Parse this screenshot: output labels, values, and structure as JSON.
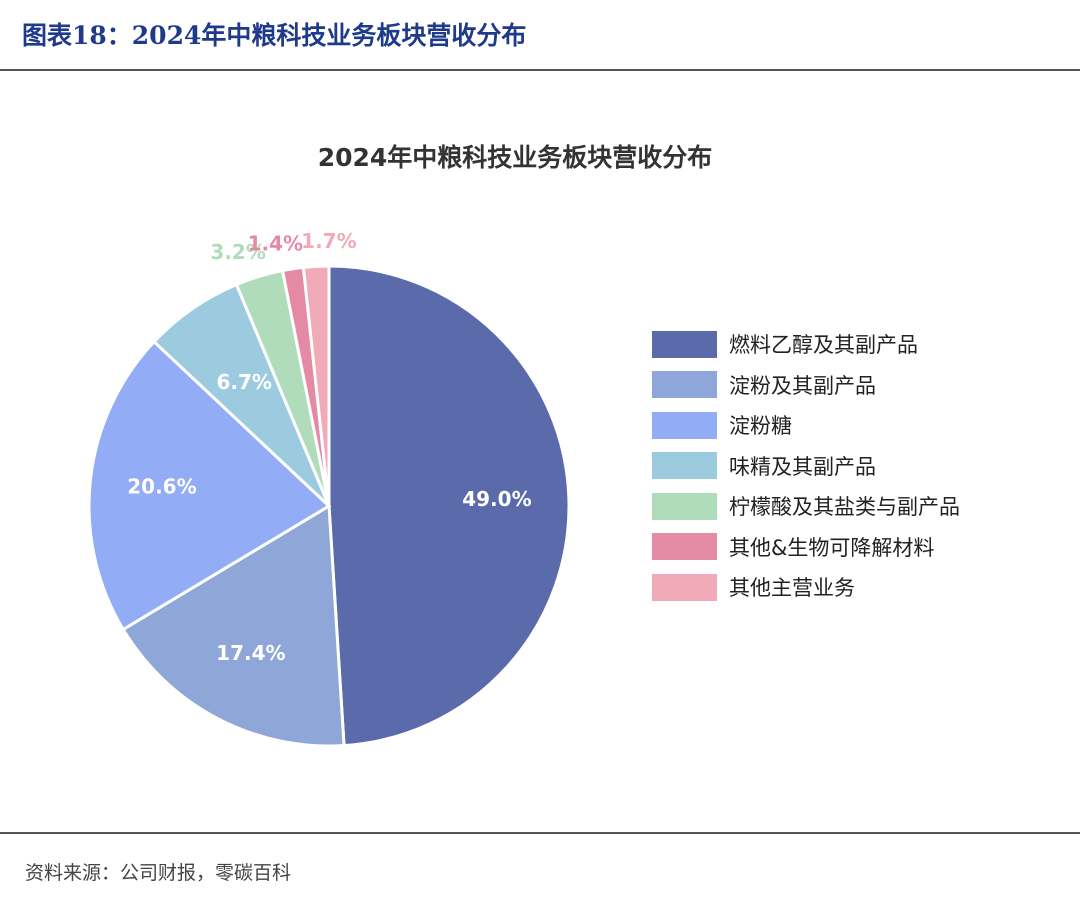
{
  "figure": {
    "title": "图表18：2024年中粮科技业务板块营收分布",
    "source": "资料来源：公司财报，零碳百科"
  },
  "chart_data": {
    "type": "pie",
    "title": "2024年中粮科技业务板块营收分布",
    "legend_position": "right",
    "slices": [
      {
        "name": "燃料乙醇及其副产品",
        "value": 49.0,
        "label": "49.0%",
        "color": "#5a6aab"
      },
      {
        "name": "淀粉及其副产品",
        "value": 17.4,
        "label": "17.4%",
        "color": "#8ea6d8"
      },
      {
        "name": "淀粉糖",
        "value": 20.6,
        "label": "20.6%",
        "color": "#93acf6"
      },
      {
        "name": "味精及其副产品",
        "value": 6.7,
        "label": "6.7%",
        "color": "#9ccbe0"
      },
      {
        "name": "柠檬酸及其盐类与副产品",
        "value": 3.2,
        "label": "3.2%",
        "color": "#b1dcbb"
      },
      {
        "name": "其他&生物可降解材料",
        "value": 1.4,
        "label": "1.4%",
        "color": "#e48aa4"
      },
      {
        "name": "其他主营业务",
        "value": 1.7,
        "label": "1.7%",
        "color": "#f1aab7"
      }
    ]
  }
}
